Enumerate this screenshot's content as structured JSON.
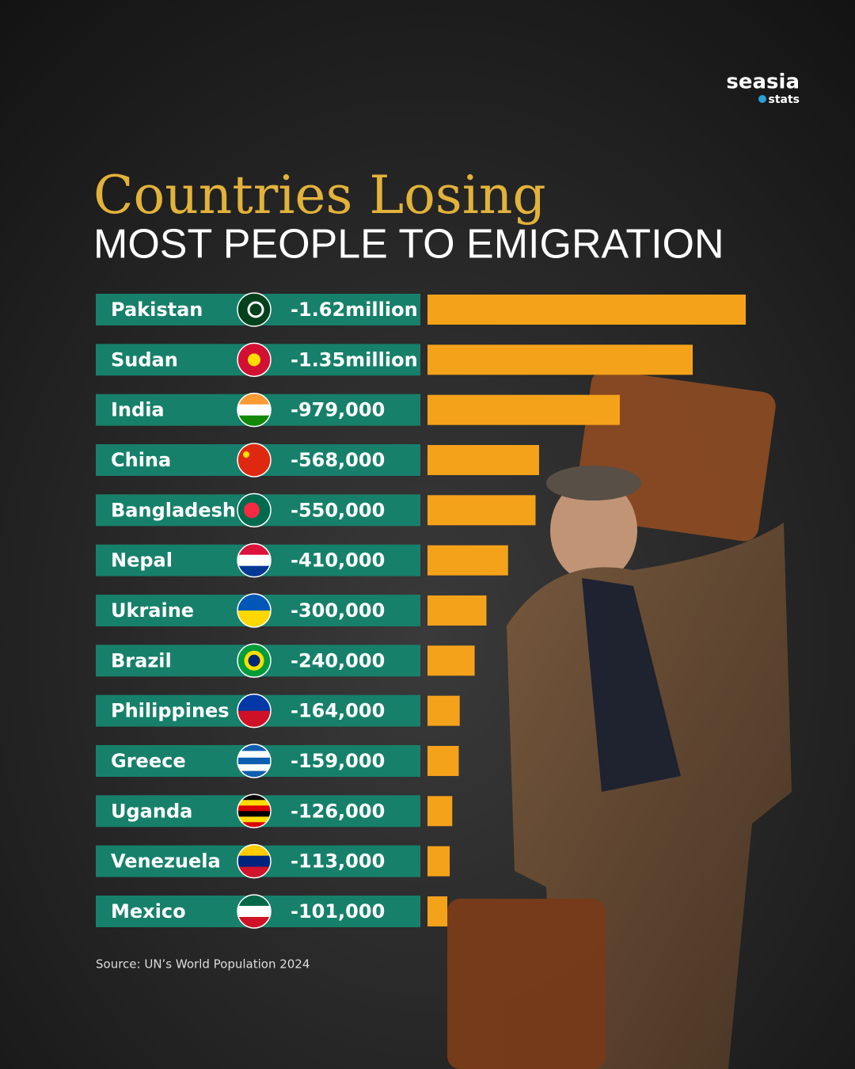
{
  "brand": {
    "name": "seasia",
    "tagline": "stats"
  },
  "chart_data": {
    "type": "bar",
    "orientation": "horizontal",
    "title": "Countries Losing",
    "subtitle": "MOST PEOPLE TO EMIGRATION",
    "categories": [
      "Pakistan",
      "Sudan",
      "India",
      "China",
      "Bangladesh",
      "Nepal",
      "Ukraine",
      "Brazil",
      "Philippines",
      "Greece",
      "Uganda",
      "Venezuela",
      "Mexico"
    ],
    "values": [
      -1620000,
      -1350000,
      -979000,
      -568000,
      -550000,
      -410000,
      -300000,
      -240000,
      -164000,
      -159000,
      -126000,
      -113000,
      -101000
    ],
    "value_labels": [
      "-1.62million",
      "-1.35million",
      "-979,000",
      "-568,000",
      "-550,000",
      "-410,000",
      "-300,000",
      "-240,000",
      "-164,000",
      "-159,000",
      "-126,000",
      "-113,000",
      "-101,000"
    ],
    "color": "#f5a21b",
    "label_color": "#17806b",
    "source": "Source: UN’s World Population 2024"
  }
}
